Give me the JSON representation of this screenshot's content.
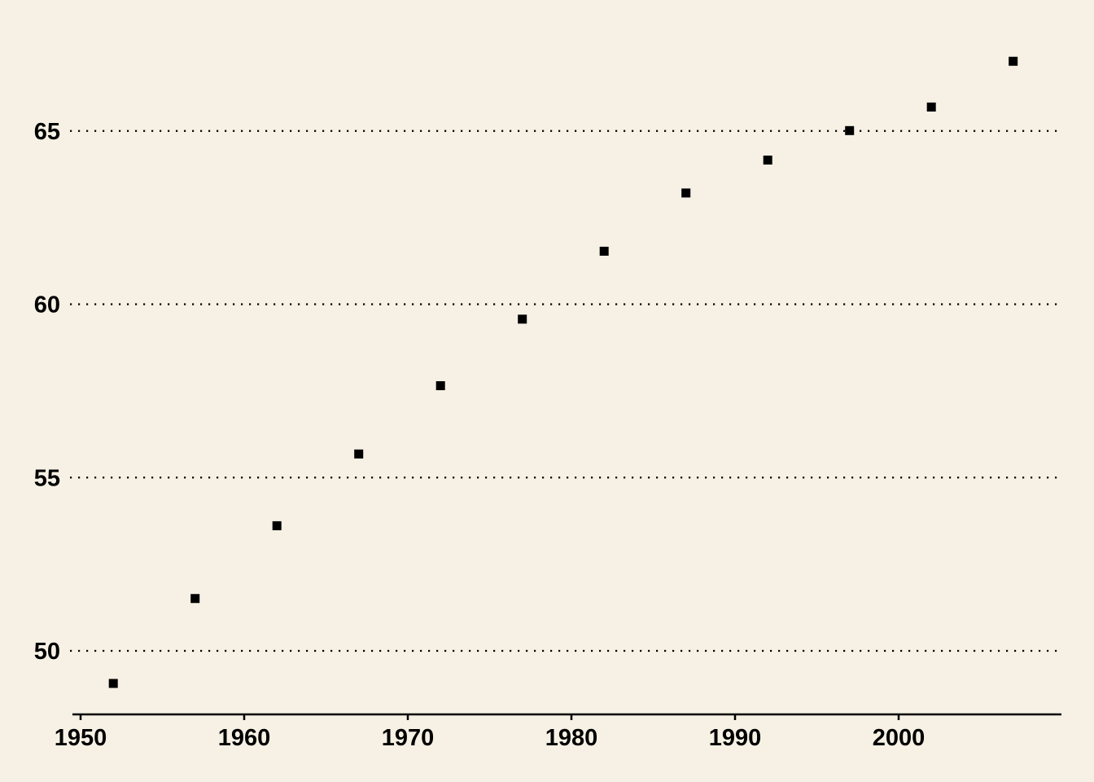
{
  "colors": {
    "background": "#f6f1e4",
    "points": "#000000",
    "grid": "#000000",
    "axis": "#000000"
  },
  "chart_data": {
    "type": "scatter",
    "title": "",
    "xlabel": "",
    "ylabel": "",
    "x": [
      1952,
      1957,
      1962,
      1967,
      1972,
      1977,
      1982,
      1987,
      1992,
      1997,
      2002,
      2007
    ],
    "series": [
      {
        "values": [
          49.06,
          51.51,
          53.61,
          55.68,
          57.65,
          59.57,
          61.53,
          63.21,
          64.16,
          65.01,
          65.69,
          67.01
        ]
      }
    ],
    "xlim": [
      1950,
      2010
    ],
    "ylim": [
      48.2,
      68.8
    ],
    "x_ticks": [
      "1950",
      "1960",
      "1970",
      "1980",
      "1990",
      "2000"
    ],
    "y_ticks": [
      "50",
      "55",
      "60",
      "65"
    ],
    "grid": "horizontal dotted",
    "legend": "none",
    "marker": "square"
  }
}
